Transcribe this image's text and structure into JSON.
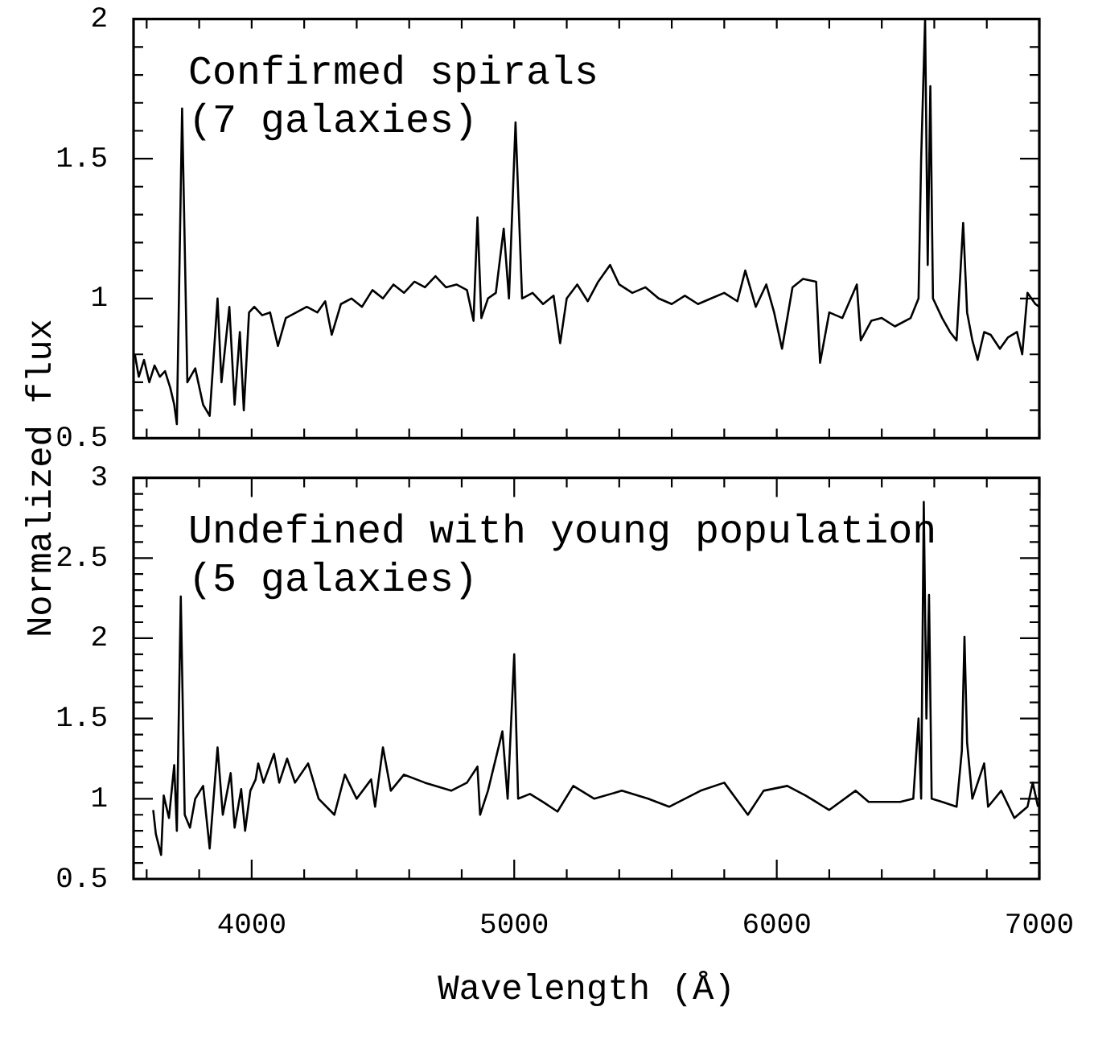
{
  "chart_data": [
    {
      "type": "line",
      "ylabel": "Normalized flux",
      "annotations": [
        "Confirmed spirals",
        "(7 galaxies)"
      ],
      "marker": "none",
      "line_style": "solid",
      "legend": false,
      "grid": false,
      "tick_labels": "y",
      "xlim": [
        3550,
        7000
      ],
      "ylim": [
        0.5,
        2
      ],
      "xticks": [
        {
          "value": 3600,
          "label": null
        },
        {
          "value": 3800,
          "label": null
        },
        {
          "value": 4000,
          "label": null
        },
        {
          "value": 4200,
          "label": null
        },
        {
          "value": 4400,
          "label": null
        },
        {
          "value": 4600,
          "label": null
        },
        {
          "value": 4800,
          "label": null
        },
        {
          "value": 5000,
          "label": null
        },
        {
          "value": 5200,
          "label": null
        },
        {
          "value": 5400,
          "label": null
        },
        {
          "value": 5600,
          "label": null
        },
        {
          "value": 5800,
          "label": null
        },
        {
          "value": 6000,
          "label": null
        },
        {
          "value": 6200,
          "label": null
        },
        {
          "value": 6400,
          "label": null
        },
        {
          "value": 6600,
          "label": null
        },
        {
          "value": 6800,
          "label": null
        },
        {
          "value": 7000,
          "label": null
        }
      ],
      "yticks": [
        0.5,
        {
          "value": 0.6,
          "label": null
        },
        {
          "value": 0.7,
          "label": null
        },
        {
          "value": 0.8,
          "label": null
        },
        {
          "value": 0.9,
          "label": null
        },
        1,
        {
          "value": 1.1,
          "label": null
        },
        {
          "value": 1.2,
          "label": null
        },
        {
          "value": 1.3,
          "label": null
        },
        {
          "value": 1.4,
          "label": null
        },
        1.5,
        {
          "value": 1.6,
          "label": null
        },
        {
          "value": 1.7,
          "label": null
        },
        {
          "value": 1.8,
          "label": null
        },
        {
          "value": 1.9,
          "label": null
        },
        2
      ],
      "series": [
        {
          "color": "#000000",
          "x": [
            3555,
            3570,
            3590,
            3610,
            3630,
            3650,
            3670,
            3690,
            3705,
            3715,
            3735,
            3755,
            3785,
            3815,
            3840,
            3870,
            3885,
            3915,
            3935,
            3955,
            3970,
            3990,
            4010,
            4040,
            4070,
            4100,
            4130,
            4170,
            4210,
            4250,
            4280,
            4305,
            4340,
            4380,
            4420,
            4460,
            4500,
            4540,
            4580,
            4620,
            4660,
            4700,
            4740,
            4780,
            4820,
            4845,
            4860,
            4875,
            4900,
            4930,
            4960,
            4980,
            5005,
            5030,
            5070,
            5110,
            5150,
            5175,
            5200,
            5240,
            5280,
            5320,
            5365,
            5400,
            5450,
            5500,
            5550,
            5600,
            5650,
            5700,
            5750,
            5800,
            5850,
            5880,
            5920,
            5960,
            5990,
            6020,
            6060,
            6100,
            6150,
            6165,
            6200,
            6250,
            6305,
            6320,
            6360,
            6400,
            6450,
            6510,
            6540,
            6550,
            6565,
            6575,
            6585,
            6595,
            6630,
            6660,
            6685,
            6710,
            6725,
            6745,
            6765,
            6790,
            6815,
            6850,
            6880,
            6915,
            6935,
            6955,
            6985,
            7000
          ],
          "values": [
            0.8,
            0.72,
            0.78,
            0.7,
            0.76,
            0.72,
            0.74,
            0.68,
            0.62,
            0.55,
            1.68,
            0.7,
            0.75,
            0.62,
            0.58,
            1.0,
            0.7,
            0.97,
            0.62,
            0.88,
            0.6,
            0.95,
            0.97,
            0.94,
            0.95,
            0.83,
            0.93,
            0.95,
            0.97,
            0.95,
            0.99,
            0.87,
            0.98,
            1.0,
            0.97,
            1.03,
            1.0,
            1.05,
            1.02,
            1.06,
            1.04,
            1.08,
            1.04,
            1.05,
            1.03,
            0.92,
            1.29,
            0.93,
            1.0,
            1.02,
            1.25,
            1.0,
            1.63,
            1.0,
            1.02,
            0.98,
            1.01,
            0.84,
            1.0,
            1.05,
            0.99,
            1.06,
            1.12,
            1.05,
            1.02,
            1.04,
            1.0,
            0.98,
            1.01,
            0.98,
            1.0,
            1.02,
            0.99,
            1.1,
            0.97,
            1.05,
            0.95,
            0.82,
            1.04,
            1.07,
            1.06,
            0.77,
            0.95,
            0.93,
            1.05,
            0.85,
            0.92,
            0.93,
            0.9,
            0.93,
            1.0,
            1.5,
            2.0,
            1.12,
            1.76,
            1.0,
            0.93,
            0.88,
            0.85,
            1.27,
            0.95,
            0.85,
            0.78,
            0.88,
            0.87,
            0.82,
            0.86,
            0.88,
            0.8,
            1.02,
            0.98,
            0.97
          ]
        }
      ]
    },
    {
      "type": "line",
      "xlabel": "Wavelength (Å)",
      "annotations": [
        "Undefined with young population",
        "(5 galaxies)"
      ],
      "marker": "none",
      "line_style": "solid",
      "legend": false,
      "grid": false,
      "xlim": [
        3550,
        7000
      ],
      "ylim": [
        0.5,
        3
      ],
      "xticks": [
        {
          "value": 3600,
          "label": null
        },
        {
          "value": 3800,
          "label": null
        },
        4000,
        {
          "value": 4200,
          "label": null
        },
        {
          "value": 4400,
          "label": null
        },
        {
          "value": 4600,
          "label": null
        },
        {
          "value": 4800,
          "label": null
        },
        5000,
        {
          "value": 5200,
          "label": null
        },
        {
          "value": 5400,
          "label": null
        },
        {
          "value": 5600,
          "label": null
        },
        {
          "value": 5800,
          "label": null
        },
        6000,
        {
          "value": 6200,
          "label": null
        },
        {
          "value": 6400,
          "label": null
        },
        {
          "value": 6600,
          "label": null
        },
        {
          "value": 6800,
          "label": null
        },
        7000
      ],
      "yticks": [
        0.5,
        {
          "value": 0.6,
          "label": null
        },
        {
          "value": 0.7,
          "label": null
        },
        {
          "value": 0.8,
          "label": null
        },
        {
          "value": 0.9,
          "label": null
        },
        1,
        {
          "value": 1.1,
          "label": null
        },
        {
          "value": 1.2,
          "label": null
        },
        {
          "value": 1.3,
          "label": null
        },
        {
          "value": 1.4,
          "label": null
        },
        1.5,
        {
          "value": 1.6,
          "label": null
        },
        {
          "value": 1.7,
          "label": null
        },
        {
          "value": 1.8,
          "label": null
        },
        {
          "value": 1.9,
          "label": null
        },
        2,
        {
          "value": 2.1,
          "label": null
        },
        {
          "value": 2.2,
          "label": null
        },
        {
          "value": 2.3,
          "label": null
        },
        {
          "value": 2.4,
          "label": null
        },
        2.5,
        {
          "value": 2.6,
          "label": null
        },
        {
          "value": 2.7,
          "label": null
        },
        {
          "value": 2.8,
          "label": null
        },
        {
          "value": 2.9,
          "label": null
        },
        3
      ],
      "series": [
        {
          "color": "#000000",
          "x": [
            3625,
            3635,
            3655,
            3665,
            3685,
            3705,
            3715,
            3730,
            3745,
            3765,
            3785,
            3815,
            3840,
            3870,
            3890,
            3920,
            3935,
            3960,
            3975,
            3995,
            4015,
            4025,
            4045,
            4085,
            4105,
            4135,
            4165,
            4215,
            4255,
            4315,
            4355,
            4400,
            4455,
            4470,
            4500,
            4530,
            4580,
            4660,
            4760,
            4820,
            4860,
            4870,
            4900,
            4955,
            4975,
            5000,
            5015,
            5060,
            5110,
            5165,
            5225,
            5305,
            5410,
            5510,
            5590,
            5710,
            5800,
            5890,
            5950,
            6040,
            6110,
            6200,
            6300,
            6350,
            6470,
            6520,
            6540,
            6550,
            6560,
            6570,
            6580,
            6590,
            6630,
            6685,
            6705,
            6715,
            6725,
            6745,
            6790,
            6805,
            6855,
            6905,
            6955,
            6975,
            6995
          ],
          "values": [
            0.93,
            0.78,
            0.65,
            1.02,
            0.88,
            1.21,
            0.8,
            2.26,
            0.9,
            0.82,
            1.0,
            1.08,
            0.69,
            1.32,
            0.9,
            1.16,
            0.82,
            1.06,
            0.8,
            1.05,
            1.12,
            1.22,
            1.1,
            1.28,
            1.1,
            1.25,
            1.1,
            1.22,
            1.0,
            0.9,
            1.15,
            1.0,
            1.12,
            0.95,
            1.32,
            1.05,
            1.15,
            1.1,
            1.05,
            1.1,
            1.2,
            0.9,
            1.05,
            1.42,
            1.0,
            1.9,
            1.0,
            1.03,
            0.98,
            0.92,
            1.08,
            1.0,
            1.05,
            1.0,
            0.95,
            1.05,
            1.1,
            0.9,
            1.05,
            1.08,
            1.02,
            0.93,
            1.05,
            0.98,
            0.98,
            1.0,
            1.5,
            1.0,
            2.85,
            1.5,
            2.27,
            1.0,
            0.98,
            0.95,
            1.3,
            2.01,
            1.35,
            1.0,
            1.22,
            0.95,
            1.05,
            0.88,
            0.95,
            1.1,
            0.95
          ]
        }
      ]
    }
  ]
}
